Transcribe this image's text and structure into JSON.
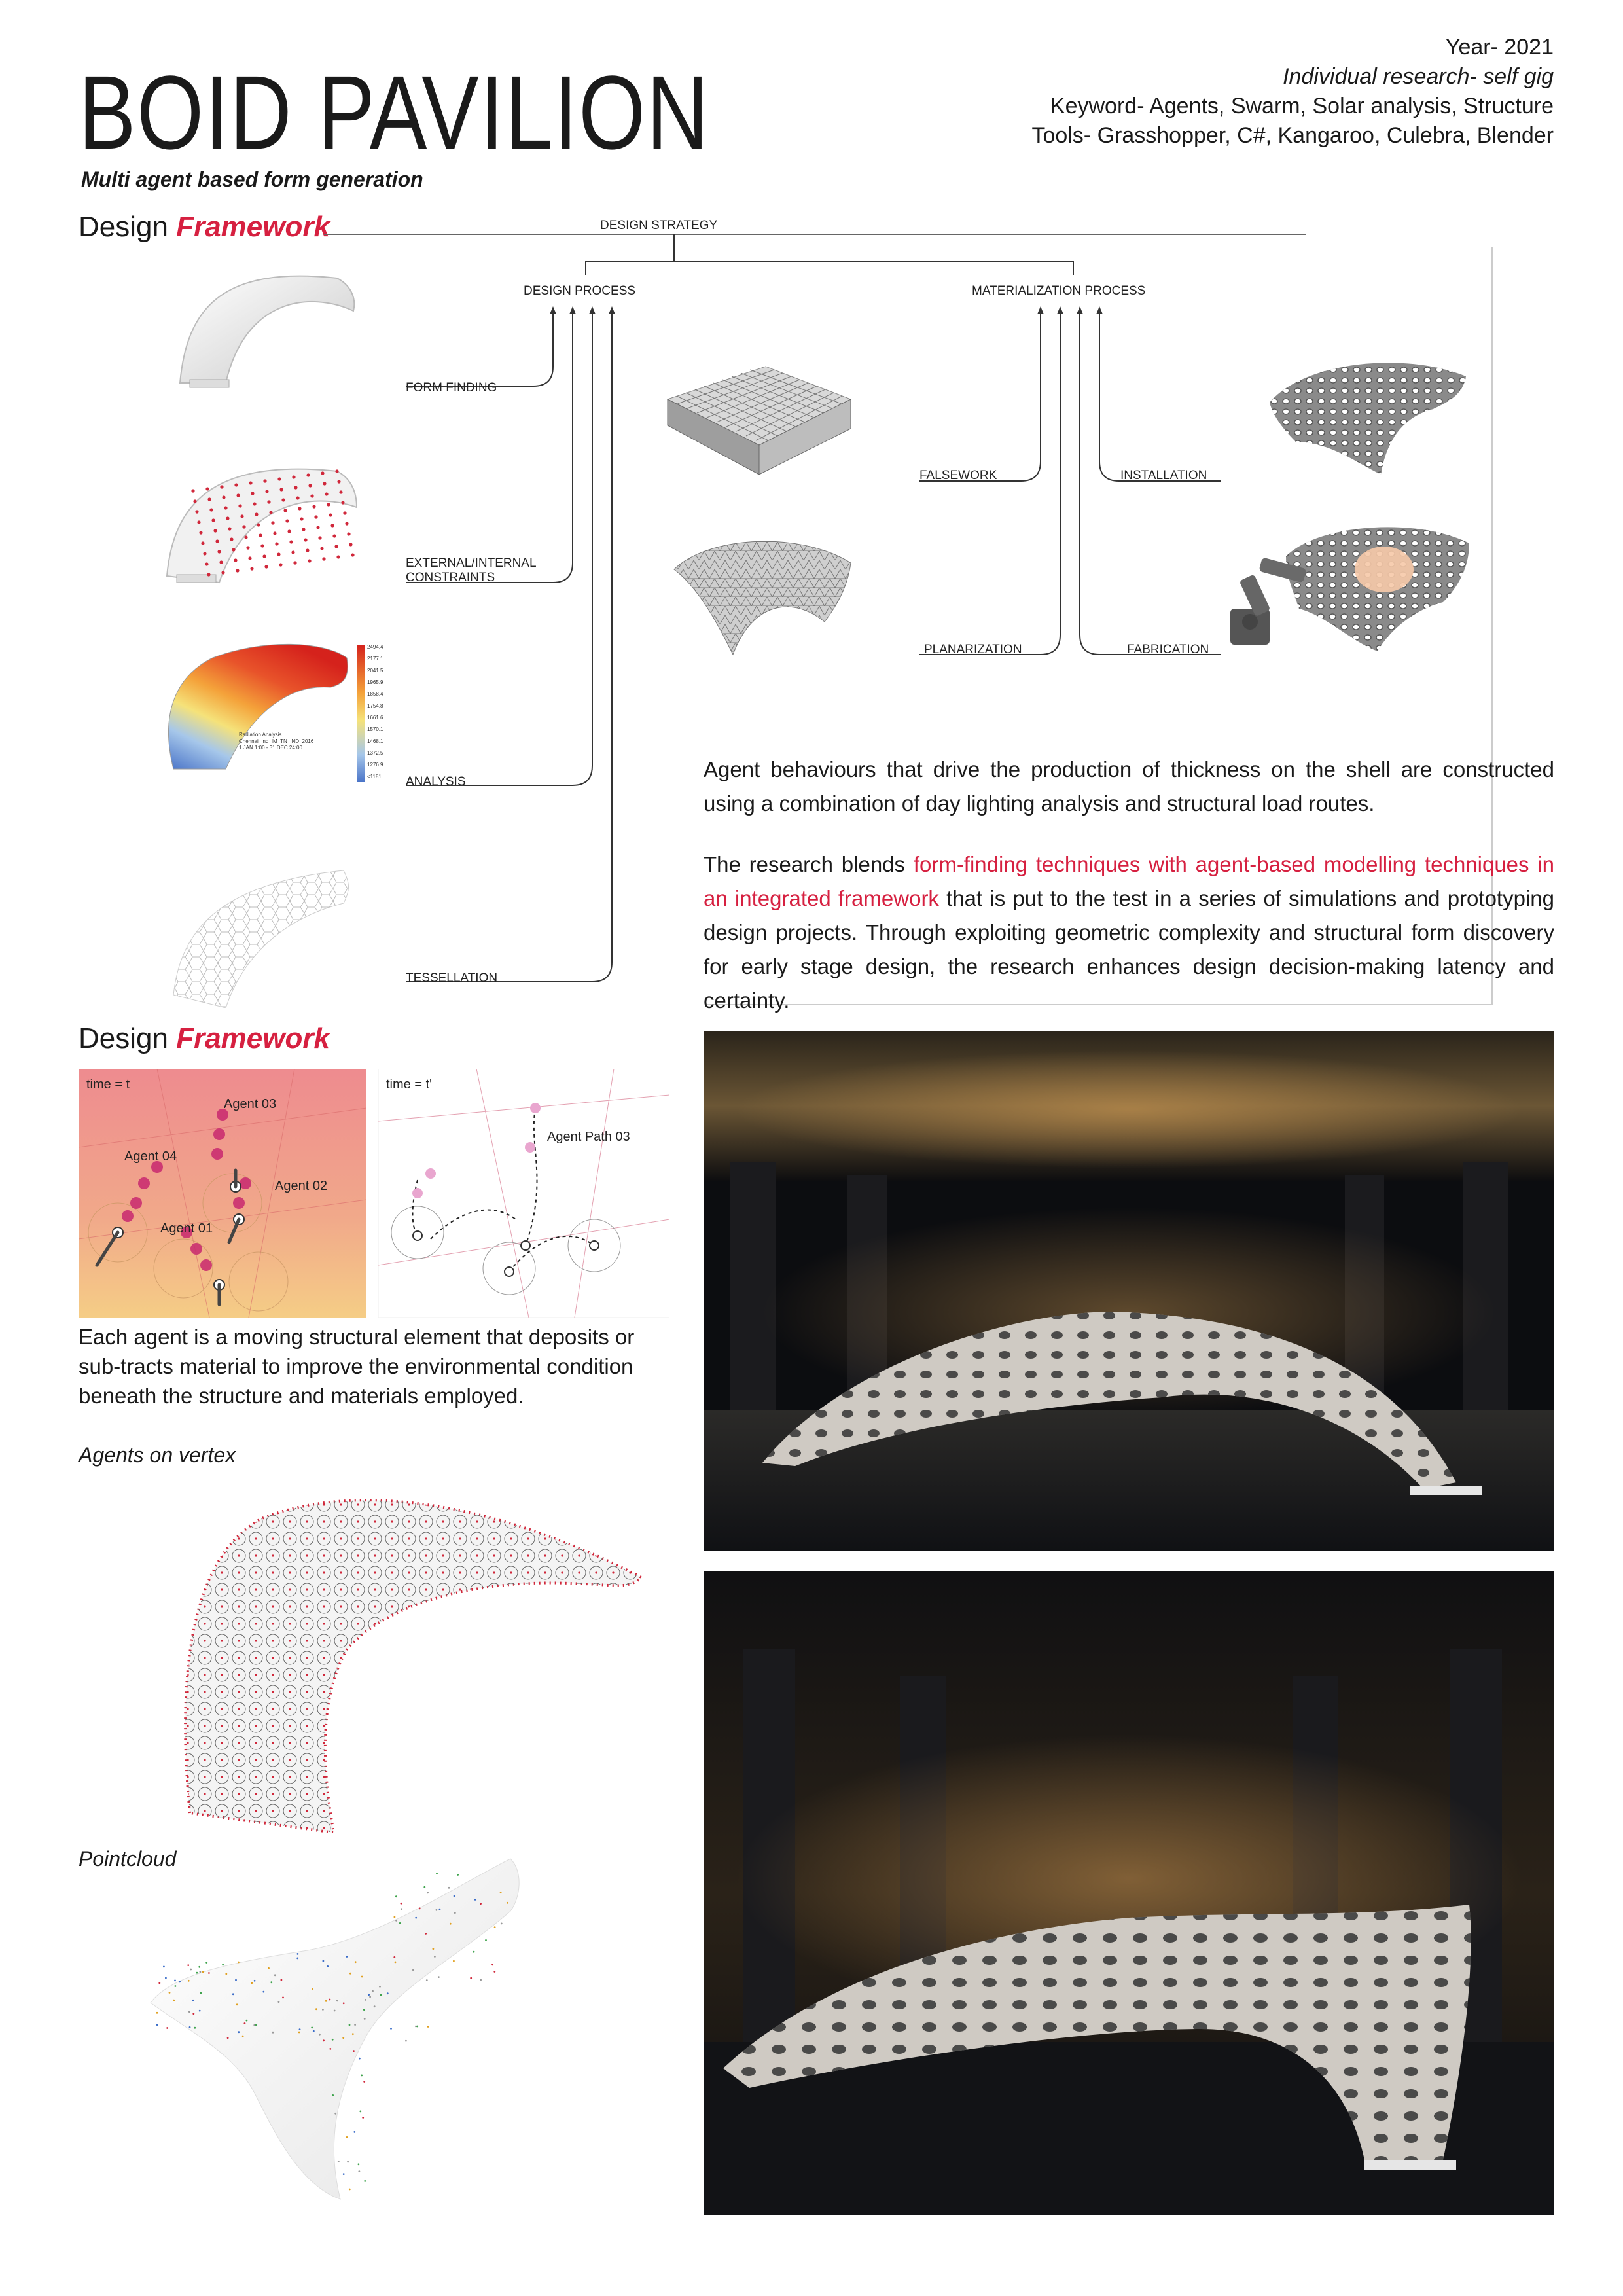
{
  "header": {
    "title": "BOID PAVILION",
    "subtitle": "Multi agent based form generation",
    "year": "Year- 2021",
    "research": "Individual research- self gig",
    "keyword": "Keyword- Agents, Swarm, Solar analysis, Structure",
    "tools": "Tools- Grasshopper, C#, Kangaroo, Culebra, Blender"
  },
  "section1": {
    "prefix": "Design",
    "accent": "Framework"
  },
  "diagram": {
    "strategy": "DESIGN STRATEGY",
    "design_process": "DESIGN PROCESS",
    "materialization_process": "MATERIALIZATION PROCESS",
    "form_finding": "FORM FINDING",
    "constraints_1": "EXTERNAL/INTERNAL",
    "constraints_2": "CONSTRAINTS",
    "analysis": "ANALYSIS",
    "tessellation": "TESSELLATION",
    "falsework": "FALSEWORK",
    "planarization": "PLANARIZATION",
    "installation": "INSTALLATION",
    "fabrication": "FABRICATION"
  },
  "legend_values": [
    "2494.42",
    "2177.11",
    "2041.54",
    "1965.97",
    "1858.40",
    "1754.83",
    "1661.65",
    "1570.12",
    "1468.12",
    "1372.55",
    "1276.98",
    "<1181.4"
  ],
  "analysis_caption": [
    "Radiation Analysis",
    "Chennai_Ind_IM_TN_IND_2016",
    "1 JAN 1:00 - 31 DEC 24:00"
  ],
  "text1": "Agent behaviours that drive the production of thickness on the shell are constructed using a combination of day lighting analysis and structural load routes.",
  "text2": {
    "a": "The research blends ",
    "highlight": "form-finding techniques with agent-based modelling techniques in an integrated framework",
    "b": " that is put to the test in a series of simulations and prototyping design projects. Through exploiting geometric complexity and structural form discovery for early stage design, the research enhances design decision-making latency and certainty."
  },
  "section2": {
    "prefix": "Design",
    "accent": "Framework"
  },
  "agents_left": {
    "time": "time = t",
    "agent01": "Agent 01",
    "agent02": "Agent 02",
    "agent03": "Agent 03",
    "agent04": "Agent 04"
  },
  "agents_right": {
    "time": "time = t'",
    "path": "Agent Path 03"
  },
  "text3": "Each agent is a moving structural element that deposits or sub-tracts material to improve the environmental condition beneath the structure and materials employed.",
  "caption_vertex": "Agents on vertex",
  "caption_pointcloud": "Pointcloud",
  "colors": {
    "accent": "#d62040",
    "agent_dot": "#c8286e",
    "photo_bg": "#0c0d10"
  }
}
